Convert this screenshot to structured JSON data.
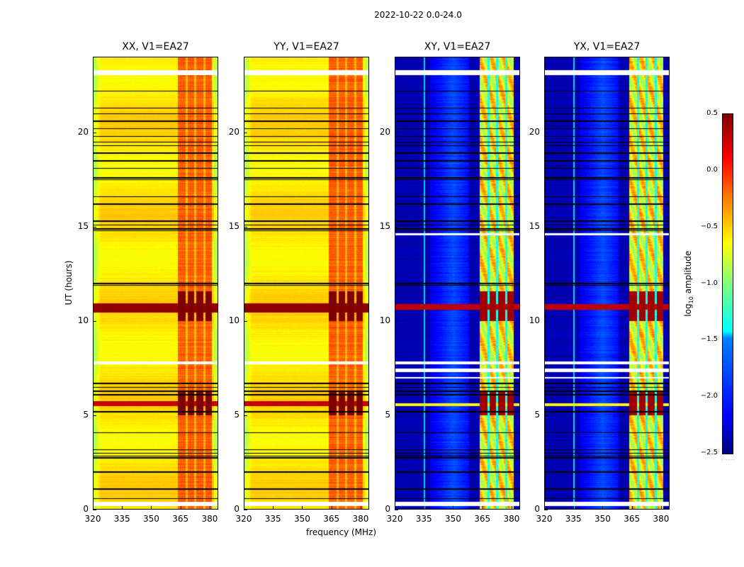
{
  "chart_data": {
    "type": "heatmap",
    "title": "2022-10-22 0.0-24.0",
    "xlabel": "frequency (MHz)",
    "ylabel": "UT (hours)",
    "xlim": [
      320,
      384.4
    ],
    "ylim": [
      0,
      24
    ],
    "xticks": [
      "320",
      "335",
      "350",
      "365",
      "380"
    ],
    "yticks": [
      "0",
      "5",
      "10",
      "15",
      "20"
    ],
    "colormap": "jet",
    "colorbar": {
      "label_prefix": "log",
      "label_sub": "10",
      "label_suffix": " amplitude",
      "vmin": -2.5,
      "vmax": 0.5,
      "ticks": [
        "0.5",
        "0.0",
        "−0.5",
        "−1.0",
        "−1.5",
        "−2.0",
        "−2.5"
      ]
    },
    "panels": [
      {
        "title": "XX, V1=EA27",
        "kind": "copol"
      },
      {
        "title": "YY, V1=EA27",
        "kind": "copol"
      },
      {
        "title": "XY, V1=EA27",
        "kind": "cross"
      },
      {
        "title": "YX, V1=EA27",
        "kind": "cross"
      }
    ],
    "model": {
      "copol_base": -0.55,
      "cross_base": -2.35,
      "cross_hump": [
        338,
        358,
        -1.9
      ],
      "subbands_mhz": [
        [
          363.5,
          367.5
        ],
        [
          368.5,
          372
        ],
        [
          373,
          376.5
        ],
        [
          377.5,
          380.8
        ]
      ],
      "copol_band_level": -0.15,
      "cross_band_level": -0.6,
      "strong_rfi_hours": [
        [
          10.45,
          10.95
        ],
        [
          5.5,
          5.75
        ]
      ],
      "band_saturated_hours": [
        [
          10.0,
          11.6
        ],
        [
          5.0,
          6.3
        ]
      ],
      "missing_hours_all": [
        [
          0.2,
          0.45
        ],
        [
          23.05,
          23.3
        ],
        [
          7.7,
          7.85
        ]
      ],
      "missing_hours_cross": [
        [
          7.3,
          7.5
        ],
        [
          6.95,
          7.05
        ],
        [
          14.55,
          14.65
        ]
      ],
      "flagged_line_hours": [
        22.2,
        21.3,
        21.0,
        20.6,
        20.2,
        19.8,
        19.5,
        19.3,
        18.9,
        18.5,
        18.1,
        17.6,
        17.5,
        16.6,
        16.2,
        15.3,
        15.1,
        14.9,
        14.8,
        12.0,
        11.9,
        6.7,
        6.5,
        6.3,
        6.1,
        5.2,
        4.1,
        3.2,
        3.0,
        2.85,
        2.75,
        2.0,
        1.1,
        0.6
      ]
    }
  }
}
